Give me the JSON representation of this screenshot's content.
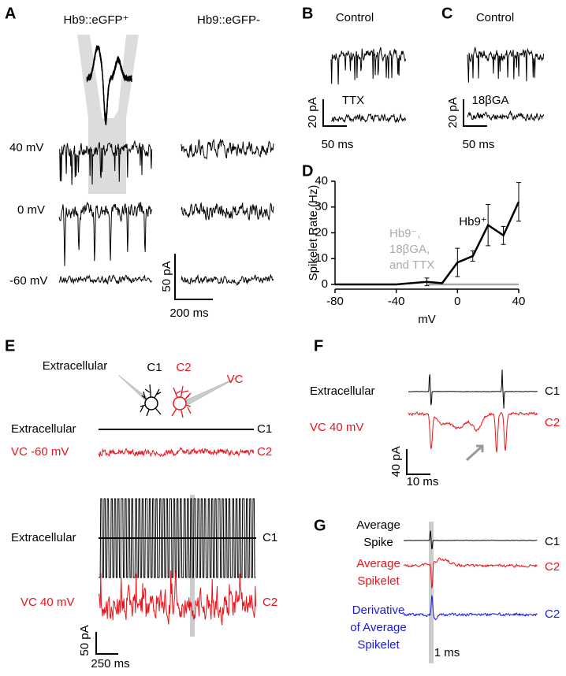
{
  "panels": {
    "A": {
      "label": "A",
      "left_title": "Hb9::eGFP⁺",
      "right_title": "Hb9::eGFP-",
      "rows": [
        "40 mV",
        "0 mV",
        "-60 mV"
      ],
      "scale_y": "50 pA",
      "scale_x": "200 ms"
    },
    "B": {
      "label": "B",
      "top": "Control",
      "bottom": "TTX",
      "scale_y": "20 pA",
      "scale_x": "50 ms"
    },
    "C": {
      "label": "C",
      "top": "Control",
      "bottom": "18βGA",
      "scale_y": "20 pA",
      "scale_x": "50 ms"
    },
    "D": {
      "label": "D"
    },
    "E": {
      "label": "E",
      "diagram": {
        "extracellular": "Extracellular",
        "c1": "C1",
        "c2": "C2",
        "vc": "VC"
      },
      "top": {
        "row1": "Extracellular",
        "row1_cell": "C1",
        "row2": "VC -60 mV",
        "row2_cell": "C2"
      },
      "bottom": {
        "row1": "Extracellular",
        "row1_cell": "C1",
        "row2": "VC 40 mV",
        "row2_cell": "C2"
      },
      "scale_y": "50 pA",
      "scale_x": "250 ms"
    },
    "F": {
      "label": "F",
      "row1": "Extracellular",
      "row1_cell": "C1",
      "row2": "VC 40 mV",
      "row2_cell": "C2",
      "scale_y": "40 pA",
      "scale_x": "10 ms"
    },
    "G": {
      "label": "G",
      "row1": [
        "Average",
        "Spike"
      ],
      "row1_cell": "C1",
      "row2": [
        "Average",
        "Spikelet"
      ],
      "row2_cell": "C2",
      "row3": [
        "Derivative",
        "of Average",
        "Spikelet"
      ],
      "row3_cell": "C2",
      "scale_x": "1 ms"
    }
  },
  "chart_data": {
    "type": "line",
    "xlabel": "mV",
    "ylabel": "Spikelet Rate (Hz)",
    "xlim": [
      -80,
      40
    ],
    "ylim": [
      0,
      40
    ],
    "xticks": [
      -80,
      -40,
      0,
      40
    ],
    "yticks": [
      0,
      10,
      20,
      30,
      40
    ],
    "series": [
      {
        "name": "Hb9⁺",
        "color": "#000000",
        "x": [
          -80,
          -60,
          -40,
          -20,
          -10,
          0,
          10,
          20,
          30,
          40
        ],
        "values": [
          0,
          0,
          0,
          1,
          0.5,
          8.5,
          11,
          23,
          19,
          32
        ],
        "errors": [
          null,
          null,
          null,
          1.5,
          null,
          5.5,
          2,
          8,
          3.5,
          7.5
        ]
      },
      {
        "color": "#aaaaaa",
        "x": [
          -20,
          40
        ],
        "values": [
          0,
          0
        ]
      }
    ],
    "annotations": [
      "Hb9⁻,",
      "18βGA,",
      "and TTX"
    ],
    "annotation_color": "#aaaaaa"
  }
}
